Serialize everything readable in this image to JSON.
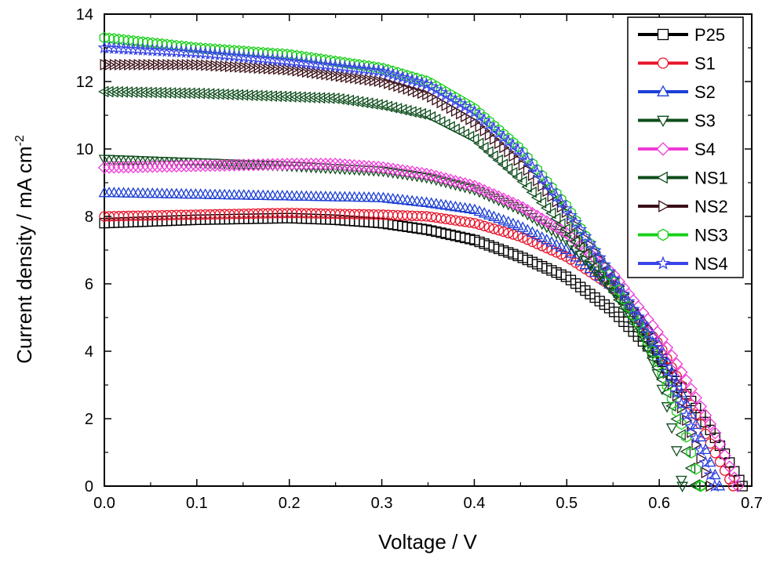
{
  "chart_data": {
    "type": "line",
    "xlabel": "Voltage / V",
    "ylabel_main": "Current density / mA cm",
    "ylabel_sup": "-2",
    "xlim": [
      0.0,
      0.7
    ],
    "ylim": [
      0,
      14
    ],
    "xticks": [
      "0.0",
      "0.1",
      "0.2",
      "0.3",
      "0.4",
      "0.5",
      "0.6",
      "0.7"
    ],
    "yticks": [
      "0",
      "2",
      "4",
      "6",
      "8",
      "10",
      "12",
      "14"
    ],
    "grid": false,
    "legend_position": "top-right",
    "series": [
      {
        "name": "P25",
        "color": "#000000",
        "marker": "square",
        "x": [
          0.0,
          0.1,
          0.2,
          0.25,
          0.3,
          0.35,
          0.4,
          0.45,
          0.5,
          0.55,
          0.6,
          0.63,
          0.65,
          0.67,
          0.69
        ],
        "y": [
          7.8,
          7.9,
          7.95,
          7.9,
          7.8,
          7.6,
          7.3,
          6.8,
          6.2,
          5.2,
          3.8,
          2.7,
          1.9,
          1.0,
          0.0
        ]
      },
      {
        "name": "S1",
        "color": "#e8142a",
        "marker": "circle",
        "x": [
          0.0,
          0.1,
          0.2,
          0.3,
          0.35,
          0.4,
          0.45,
          0.5,
          0.55,
          0.6,
          0.62,
          0.64,
          0.66,
          0.68
        ],
        "y": [
          8.0,
          8.05,
          8.1,
          8.05,
          8.0,
          7.8,
          7.4,
          6.8,
          5.9,
          4.2,
          3.2,
          2.1,
          1.0,
          0.0
        ]
      },
      {
        "name": "S2",
        "color": "#1c3fd6",
        "marker": "triangle-up",
        "x": [
          0.0,
          0.1,
          0.2,
          0.3,
          0.35,
          0.4,
          0.45,
          0.5,
          0.55,
          0.58,
          0.6,
          0.62,
          0.64,
          0.665
        ],
        "y": [
          8.7,
          8.65,
          8.6,
          8.55,
          8.4,
          8.2,
          7.7,
          7.0,
          5.9,
          5.0,
          4.2,
          3.0,
          1.8,
          0.0
        ]
      },
      {
        "name": "S3",
        "color": "#0e4d1c",
        "marker": "triangle-down",
        "x": [
          0.0,
          0.1,
          0.2,
          0.3,
          0.35,
          0.4,
          0.45,
          0.5,
          0.55,
          0.58,
          0.6,
          0.61,
          0.62,
          0.625
        ],
        "y": [
          9.7,
          9.6,
          9.5,
          9.35,
          9.15,
          8.8,
          8.2,
          7.3,
          5.8,
          4.6,
          3.2,
          2.2,
          0.9,
          0.0
        ]
      },
      {
        "name": "S4",
        "color": "#ee3ad6",
        "marker": "diamond",
        "x": [
          0.0,
          0.1,
          0.2,
          0.25,
          0.3,
          0.35,
          0.4,
          0.45,
          0.5,
          0.55,
          0.6,
          0.63,
          0.66,
          0.685
        ],
        "y": [
          9.45,
          9.5,
          9.55,
          9.55,
          9.45,
          9.25,
          8.9,
          8.3,
          7.5,
          6.3,
          4.5,
          3.1,
          1.6,
          0.0
        ]
      },
      {
        "name": "NS1",
        "color": "#0e4d1c",
        "marker": "triangle-left",
        "x": [
          0.0,
          0.1,
          0.2,
          0.25,
          0.3,
          0.35,
          0.4,
          0.45,
          0.5,
          0.55,
          0.58,
          0.6,
          0.62,
          0.64
        ],
        "y": [
          11.7,
          11.65,
          11.55,
          11.5,
          11.3,
          11.0,
          10.3,
          9.1,
          7.6,
          5.8,
          4.5,
          3.4,
          1.9,
          0.0
        ]
      },
      {
        "name": "NS2",
        "color": "#3a0f16",
        "marker": "triangle-right",
        "x": [
          0.0,
          0.1,
          0.2,
          0.3,
          0.35,
          0.4,
          0.45,
          0.5,
          0.55,
          0.58,
          0.6,
          0.62,
          0.64,
          0.655
        ],
        "y": [
          12.5,
          12.5,
          12.35,
          12.0,
          11.6,
          10.8,
          9.6,
          8.1,
          6.2,
          4.9,
          3.9,
          2.6,
          1.2,
          0.0
        ]
      },
      {
        "name": "NS3",
        "color": "#19d019",
        "marker": "hexagon",
        "x": [
          0.0,
          0.1,
          0.2,
          0.3,
          0.35,
          0.4,
          0.45,
          0.5,
          0.55,
          0.58,
          0.6,
          0.615,
          0.63,
          0.645
        ],
        "y": [
          13.3,
          13.0,
          12.8,
          12.4,
          12.0,
          11.2,
          10.0,
          8.3,
          6.1,
          4.7,
          3.6,
          2.5,
          1.4,
          0.0
        ]
      },
      {
        "name": "NS4",
        "color": "#3a46e8",
        "marker": "star",
        "x": [
          0.0,
          0.1,
          0.2,
          0.3,
          0.35,
          0.4,
          0.45,
          0.5,
          0.55,
          0.58,
          0.6,
          0.62,
          0.64,
          0.66
        ],
        "y": [
          13.0,
          12.85,
          12.6,
          12.3,
          11.9,
          11.1,
          9.9,
          8.2,
          6.2,
          4.9,
          3.9,
          2.7,
          1.4,
          0.0
        ]
      }
    ]
  }
}
